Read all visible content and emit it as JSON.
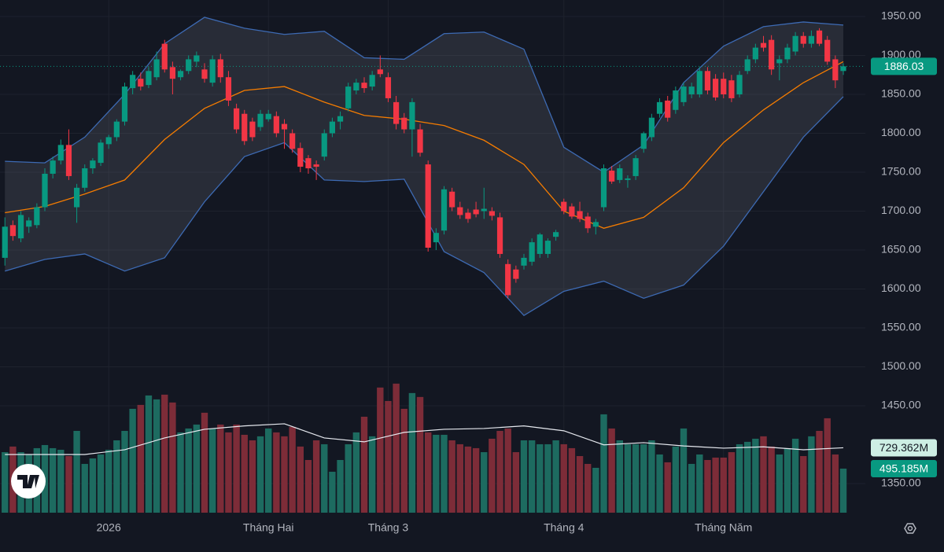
{
  "chart_data": {
    "type": "candlestick",
    "categories": [
      null,
      null,
      null,
      null,
      null,
      null,
      null,
      null,
      null,
      null,
      null,
      null,
      null,
      "2026",
      null,
      null,
      null,
      null,
      null,
      null,
      null,
      null,
      null,
      null,
      null,
      null,
      null,
      null,
      null,
      null,
      null,
      null,
      null,
      "Tháng Hai",
      null,
      null,
      null,
      null,
      null,
      null,
      null,
      null,
      null,
      null,
      null,
      null,
      null,
      null,
      "Tháng 3",
      null,
      null,
      null,
      null,
      null,
      null,
      null,
      null,
      null,
      null,
      null,
      null,
      null,
      null,
      null,
      null,
      null,
      null,
      null,
      null,
      null,
      "Tháng 4",
      null,
      null,
      null,
      null,
      null,
      null,
      null,
      null,
      null,
      null,
      null,
      null,
      null,
      null,
      null,
      null,
      null,
      null,
      null,
      "Tháng Năm",
      null,
      null,
      null,
      null,
      null,
      null,
      null,
      null,
      null,
      null,
      null,
      null,
      null,
      null,
      null
    ],
    "open": [
      1640,
      1682,
      1665,
      1680,
      1682,
      1705,
      1748,
      1765,
      1785,
      1705,
      1730,
      1755,
      1762,
      1786,
      1795,
      1815,
      1858,
      1870,
      1862,
      1872,
      1915,
      1885,
      1872,
      1880,
      1892,
      1882,
      1865,
      1895,
      1872,
      1832,
      1825,
      1815,
      1808,
      1818,
      1822,
      1812,
      1800,
      1781,
      1768,
      1760,
      1770,
      1800,
      1815,
      1832,
      1855,
      1865,
      1860,
      1882,
      1872,
      1840,
      1820,
      1805,
      1805,
      1760,
      1660,
      1675,
      1725,
      1705,
      1698,
      1702,
      1700,
      1700,
      1692,
      1632,
      1625,
      1630,
      1635,
      1645,
      1645,
      1667,
      1712,
      1706,
      1700,
      1693,
      1680,
      1705,
      1752,
      1740,
      1740,
      1745,
      1780,
      1795,
      1825,
      1842,
      1830,
      1840,
      1850,
      1850,
      1880,
      1870,
      1870,
      1868,
      1850,
      1880,
      1895,
      1916,
      1920,
      1890,
      1895,
      1905,
      1925,
      1915,
      1932,
      1920,
      1895,
      1880
    ],
    "high": [
      1692,
      1688,
      1700,
      1692,
      1710,
      1755,
      1770,
      1792,
      1805,
      1735,
      1760,
      1768,
      1792,
      1798,
      1818,
      1865,
      1880,
      1878,
      1885,
      1905,
      1920,
      1892,
      1882,
      1900,
      1905,
      1890,
      1900,
      1902,
      1880,
      1838,
      1830,
      1820,
      1830,
      1830,
      1828,
      1818,
      1805,
      1788,
      1772,
      1765,
      1805,
      1820,
      1828,
      1865,
      1870,
      1872,
      1880,
      1900,
      1878,
      1848,
      1826,
      1845,
      1812,
      1765,
      1678,
      1732,
      1730,
      1712,
      1703,
      1712,
      1730,
      1705,
      1698,
      1638,
      1630,
      1645,
      1665,
      1672,
      1665,
      1676,
      1716,
      1710,
      1712,
      1698,
      1690,
      1760,
      1758,
      1760,
      1746,
      1772,
      1802,
      1825,
      1845,
      1848,
      1860,
      1865,
      1865,
      1885,
      1885,
      1876,
      1878,
      1875,
      1880,
      1900,
      1915,
      1925,
      1926,
      1900,
      1915,
      1930,
      1930,
      1932,
      1935,
      1925,
      1900,
      1890
    ],
    "low": [
      1630,
      1662,
      1660,
      1672,
      1678,
      1700,
      1742,
      1760,
      1740,
      1685,
      1725,
      1748,
      1758,
      1780,
      1790,
      1810,
      1850,
      1855,
      1858,
      1868,
      1878,
      1850,
      1868,
      1876,
      1885,
      1865,
      1860,
      1865,
      1835,
      1800,
      1785,
      1790,
      1803,
      1815,
      1795,
      1780,
      1775,
      1750,
      1748,
      1740,
      1765,
      1795,
      1805,
      1828,
      1850,
      1852,
      1855,
      1872,
      1840,
      1805,
      1800,
      1770,
      1770,
      1648,
      1650,
      1670,
      1700,
      1690,
      1685,
      1692,
      1690,
      1688,
      1640,
      1588,
      1608,
      1625,
      1630,
      1640,
      1640,
      1662,
      1696,
      1690,
      1686,
      1672,
      1670,
      1700,
      1735,
      1736,
      1730,
      1740,
      1775,
      1790,
      1820,
      1815,
      1825,
      1835,
      1845,
      1846,
      1850,
      1842,
      1845,
      1840,
      1846,
      1876,
      1890,
      1905,
      1875,
      1868,
      1890,
      1900,
      1910,
      1910,
      1912,
      1888,
      1858,
      1875
    ],
    "close": [
      1680,
      1668,
      1695,
      1688,
      1705,
      1748,
      1765,
      1785,
      1745,
      1730,
      1755,
      1765,
      1788,
      1795,
      1815,
      1860,
      1875,
      1860,
      1880,
      1895,
      1882,
      1870,
      1880,
      1895,
      1900,
      1870,
      1895,
      1872,
      1842,
      1805,
      1790,
      1795,
      1825,
      1825,
      1800,
      1805,
      1780,
      1757,
      1755,
      1757,
      1800,
      1815,
      1822,
      1860,
      1865,
      1858,
      1875,
      1876,
      1845,
      1812,
      1805,
      1840,
      1775,
      1653,
      1672,
      1728,
      1705,
      1695,
      1690,
      1696,
      1703,
      1694,
      1645,
      1592,
      1613,
      1640,
      1660,
      1670,
      1662,
      1673,
      1700,
      1693,
      1690,
      1678,
      1686,
      1755,
      1738,
      1755,
      1742,
      1768,
      1800,
      1820,
      1840,
      1820,
      1855,
      1860,
      1860,
      1880,
      1855,
      1846,
      1850,
      1845,
      1875,
      1895,
      1910,
      1910,
      1882,
      1895,
      1910,
      1925,
      1915,
      1925,
      1915,
      1892,
      1868,
      1886.03
    ],
    "up_color": "#089981",
    "down_color": "#f23645",
    "ylim": [
      1312.6,
      1971.2
    ],
    "yticks": [
      {
        "value": 1950,
        "label": "1950.00"
      },
      {
        "value": 1900,
        "label": "1900.00"
      },
      {
        "value": 1850,
        "label": "1850.00"
      },
      {
        "value": 1800,
        "label": "1800.00"
      },
      {
        "value": 1750,
        "label": "1750.00"
      },
      {
        "value": 1700,
        "label": "1700.00"
      },
      {
        "value": 1650,
        "label": "1650.00"
      },
      {
        "value": 1600,
        "label": "1600.00"
      },
      {
        "value": 1550,
        "label": "1550.00"
      },
      {
        "value": 1500,
        "label": "1500.00"
      },
      {
        "value": 1450,
        "label": "1450.00"
      },
      {
        "value": 1350,
        "label": "1350.00"
      }
    ],
    "grid": true,
    "last_price": {
      "value": 1886.03,
      "label": "1886.03"
    },
    "band_x": [
      0,
      5,
      10,
      15,
      20,
      25,
      30,
      35,
      40,
      45,
      50,
      55,
      60,
      65,
      70,
      75,
      80,
      85,
      90,
      95,
      100,
      105
    ],
    "upper_band": [
      1764,
      1762,
      1795,
      1850,
      1915,
      1949,
      1935,
      1927,
      1931,
      1897,
      1895,
      1928,
      1930,
      1908,
      1782,
      1750,
      1785,
      1865,
      1912,
      1937,
      1943,
      1939
    ],
    "middle_band": [
      1698,
      1706,
      1722,
      1740,
      1792,
      1832,
      1855,
      1860,
      1840,
      1823,
      1818,
      1810,
      1791,
      1760,
      1700,
      1678,
      1692,
      1730,
      1788,
      1830,
      1865,
      1892
    ],
    "lower_band": [
      1623,
      1638,
      1645,
      1623,
      1640,
      1712,
      1770,
      1788,
      1740,
      1738,
      1741,
      1648,
      1621,
      1566,
      1597,
      1610,
      1588,
      1605,
      1655,
      1725,
      1795,
      1847
    ],
    "band_color": "#3d6ab3",
    "middle_color": "#f57c00",
    "volume": {
      "values": [
        680,
        743,
        680,
        654,
        725,
        760,
        725,
        707,
        636,
        919,
        548,
        610,
        654,
        707,
        813,
        919,
        1167,
        1211,
        1317,
        1273,
        1326,
        1238,
        902,
        946,
        990,
        1123,
        946,
        990,
        902,
        990,
        875,
        813,
        858,
        946,
        902,
        858,
        964,
        743,
        592,
        813,
        769,
        460,
        592,
        769,
        902,
        1078,
        858,
        1406,
        1255,
        1450,
        1167,
        1344,
        1300,
        902,
        875,
        875,
        813,
        769,
        743,
        725,
        680,
        831,
        919,
        946,
        680,
        813,
        813,
        769,
        769,
        813,
        769,
        725,
        636,
        548,
        504,
        1105,
        946,
        813,
        769,
        769,
        769,
        813,
        654,
        566,
        743,
        946,
        548,
        654,
        592,
        619,
        619,
        680,
        769,
        796,
        831,
        858,
        743,
        654,
        725,
        831,
        636,
        858,
        919,
        1061,
        654,
        495.185
      ],
      "ylim": [
        0,
        5760
      ],
      "up_color": "#1d6b60",
      "down_color": "#7d2c38",
      "ma_x": [
        0,
        5,
        10,
        15,
        20,
        25,
        30,
        35,
        40,
        45,
        50,
        55,
        60,
        65,
        70,
        75,
        80,
        85,
        90,
        95,
        100,
        105
      ],
      "ma_values": [
        654,
        654,
        654,
        707,
        840,
        937,
        975,
        999,
        840,
        796,
        902,
        937,
        946,
        975,
        920,
        762,
        787,
        750,
        725,
        740,
        707,
        729.362
      ],
      "ma_color": "#e6e9ef",
      "ma_last": {
        "value": 729.362,
        "label": "729.362M"
      },
      "last": {
        "value": 495.185,
        "label": "495.185M"
      }
    }
  }
}
